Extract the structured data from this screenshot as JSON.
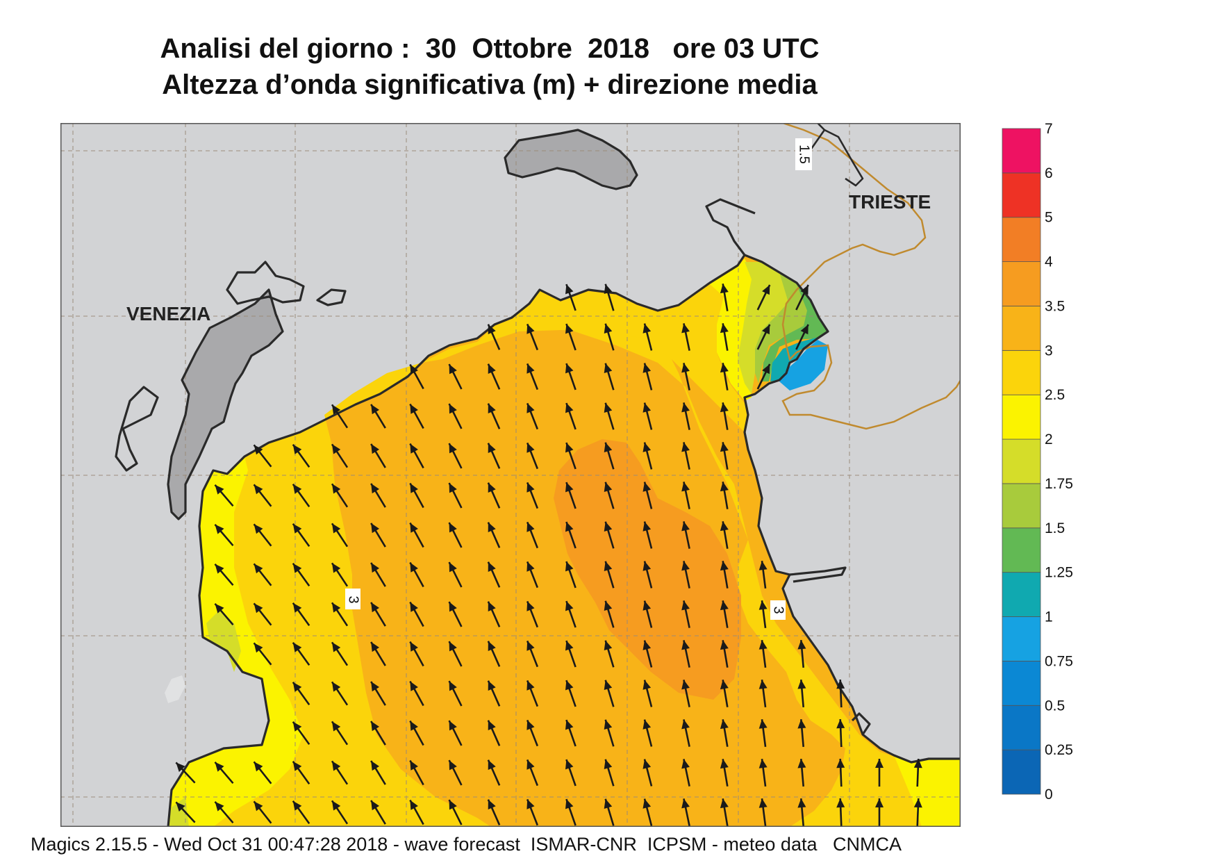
{
  "title": {
    "line1": "Analisi del giorno :  30  Ottobre  2018   ore 03 UTC",
    "line2": "Altezza d’onda significativa (m) + direzione media"
  },
  "map": {
    "cities": [
      {
        "name": "VENEZIA"
      },
      {
        "name": "TRIESTE"
      }
    ],
    "contour_labels": [
      "3",
      "3",
      "1.5"
    ],
    "legend": {
      "levels": [
        "0",
        "0.25",
        "0.5",
        "0.75",
        "1",
        "1.25",
        "1.5",
        "1.75",
        "2",
        "2.5",
        "3",
        "3.5",
        "4",
        "5",
        "6",
        "7"
      ],
      "colors": [
        "#0b66b5",
        "#0a77c6",
        "#0b88d4",
        "#16a2e2",
        "#10a9b0",
        "#62b954",
        "#a8cb3c",
        "#d5dd29",
        "#fbf300",
        "#fbd40b",
        "#f8b318",
        "#f69c20",
        "#f27e25",
        "#ee3225",
        "#ee1262"
      ]
    },
    "colors": {
      "land": "#d2d3d5",
      "gray_land": "#a9a9ab",
      "coast": "#2a2a2a",
      "border": "#c08a2e",
      "arrow": "#1a1a1a"
    },
    "wave_direction": "north-northwest",
    "wave_height_range_m": [
      0.75,
      4
    ]
  },
  "footer": "Magics 2.15.5 - Wed Oct 31 00:47:28 2018 - wave forecast  ISMAR-CNR  ICPSM - meteo data   CNMCA"
}
